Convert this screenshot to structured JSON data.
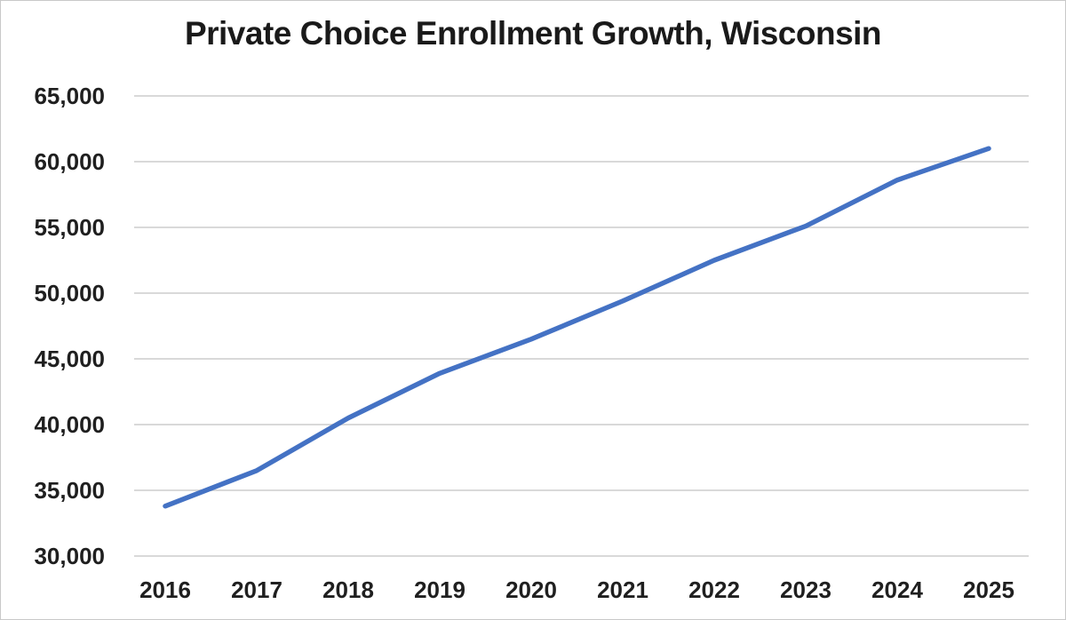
{
  "chart_data": {
    "type": "line",
    "title": "Private Choice Enrollment Growth, Wisconsin",
    "xlabel": "",
    "ylabel": "",
    "x": [
      2016,
      2017,
      2018,
      2019,
      2020,
      2021,
      2022,
      2023,
      2024,
      2025
    ],
    "x_tick_labels": [
      "2016",
      "2017",
      "2018",
      "2019",
      "2020",
      "2021",
      "2022",
      "2023",
      "2024",
      "2025"
    ],
    "series": [
      {
        "name": "Private Choice Enrollment",
        "values": [
          33800,
          36500,
          40500,
          43900,
          46500,
          49400,
          52500,
          55100,
          58600,
          61000
        ]
      }
    ],
    "ylim": [
      30000,
      65000
    ],
    "ytick_step": 5000,
    "y_ticks": [
      30000,
      35000,
      40000,
      45000,
      50000,
      55000,
      60000,
      65000
    ],
    "y_tick_labels": [
      "30,000",
      "35,000",
      "40,000",
      "45,000",
      "50,000",
      "55,000",
      "60,000",
      "65,000"
    ],
    "grid": "horizontal",
    "legend_position": "none",
    "colors": {
      "line": "#4472C4",
      "gridline": "#d9d9d9",
      "text": "#1f1f1f",
      "background": "#ffffff"
    }
  }
}
